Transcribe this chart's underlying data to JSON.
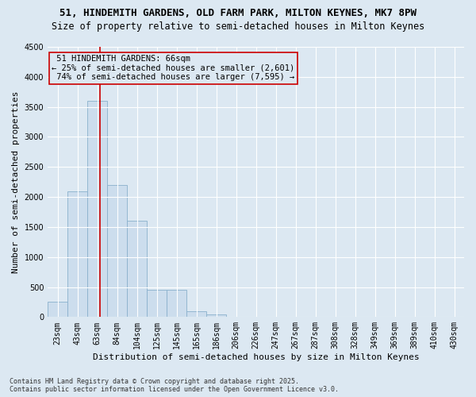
{
  "title_line1": "51, HINDEMITH GARDENS, OLD FARM PARK, MILTON KEYNES, MK7 8PW",
  "title_line2": "Size of property relative to semi-detached houses in Milton Keynes",
  "xlabel": "Distribution of semi-detached houses by size in Milton Keynes",
  "ylabel": "Number of semi-detached properties",
  "footnote": "Contains HM Land Registry data © Crown copyright and database right 2025.\nContains public sector information licensed under the Open Government Licence v3.0.",
  "bin_labels": [
    "23sqm",
    "43sqm",
    "63sqm",
    "84sqm",
    "104sqm",
    "125sqm",
    "145sqm",
    "165sqm",
    "186sqm",
    "206sqm",
    "226sqm",
    "247sqm",
    "267sqm",
    "287sqm",
    "308sqm",
    "328sqm",
    "349sqm",
    "369sqm",
    "389sqm",
    "410sqm",
    "430sqm"
  ],
  "bar_values": [
    250,
    2100,
    3600,
    2200,
    1600,
    450,
    450,
    100,
    50,
    0,
    0,
    0,
    0,
    0,
    0,
    0,
    0,
    0,
    0,
    0,
    0
  ],
  "bar_color": "#ccdded",
  "bar_edge_color": "#8ab0cc",
  "property_size_label": "51 HINDEMITH GARDENS: 66sqm",
  "pct_smaller": 25,
  "n_smaller": 2601,
  "pct_larger": 74,
  "n_larger": 7595,
  "vline_color": "#cc0000",
  "annotation_box_edge": "#cc0000",
  "vline_x_index": 2.15,
  "ylim": [
    0,
    4500
  ],
  "yticks": [
    0,
    500,
    1000,
    1500,
    2000,
    2500,
    3000,
    3500,
    4000,
    4500
  ],
  "background_color": "#dce8f2",
  "grid_color": "#ffffff",
  "title_fontsize": 9,
  "subtitle_fontsize": 8.5,
  "axis_label_fontsize": 8,
  "tick_fontsize": 7,
  "annotation_fontsize": 7.5,
  "footnote_fontsize": 6
}
